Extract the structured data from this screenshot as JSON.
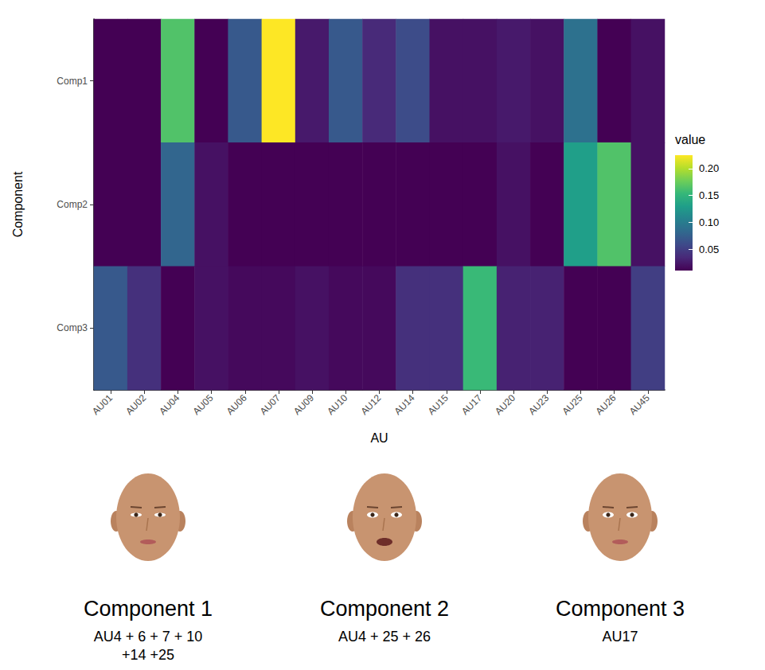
{
  "chart_data": {
    "type": "heatmap",
    "x_label": "AU",
    "y_label": "Component",
    "categories": [
      "AU01",
      "AU02",
      "AU04",
      "AU05",
      "AU06",
      "AU07",
      "AU09",
      "AU10",
      "AU12",
      "AU14",
      "AU15",
      "AU17",
      "AU20",
      "AU23",
      "AU25",
      "AU26",
      "AU45"
    ],
    "rows": [
      "Comp1",
      "Comp2",
      "Comp3"
    ],
    "cells": [
      [
        0.01,
        0.01,
        0.165,
        0.01,
        0.07,
        0.225,
        0.025,
        0.07,
        0.035,
        0.06,
        0.02,
        0.02,
        0.025,
        0.02,
        0.09,
        0.01,
        0.02
      ],
      [
        0.01,
        0.01,
        0.08,
        0.02,
        0.01,
        0.01,
        0.01,
        0.01,
        0.01,
        0.01,
        0.01,
        0.01,
        0.02,
        0.01,
        0.13,
        0.165,
        0.02
      ],
      [
        0.07,
        0.04,
        0.01,
        0.02,
        0.015,
        0.015,
        0.02,
        0.015,
        0.015,
        0.04,
        0.04,
        0.155,
        0.03,
        0.03,
        0.01,
        0.01,
        0.05
      ]
    ],
    "colorbar": {
      "title": "value",
      "range": [
        0.01,
        0.225
      ],
      "ticks": [
        0.05,
        {
          "value": 0.1,
          "label": "0.10"
        },
        {
          "value": 0.15,
          "label": "0.15"
        },
        {
          "value": 0.2,
          "label": "0.20"
        }
      ]
    }
  },
  "components": [
    {
      "title": "Component 1",
      "formula": [
        "AU4 + 6 + 7 + 10",
        "+14 +25"
      ]
    },
    {
      "title": "Component 2",
      "formula": [
        "AU4 + 25 + 26"
      ]
    },
    {
      "title": "Component 3",
      "formula": [
        "AU17"
      ]
    }
  ]
}
